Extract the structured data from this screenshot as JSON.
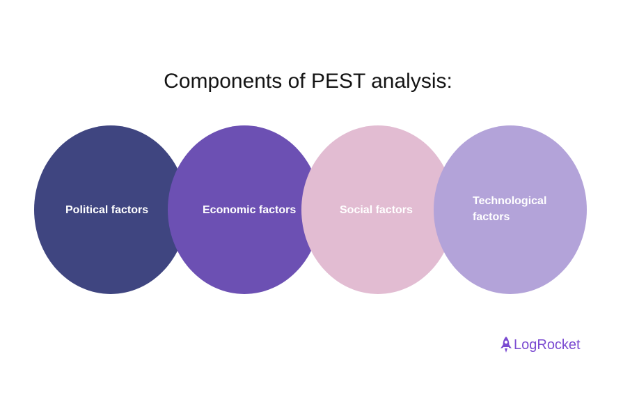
{
  "title": "Components of PEST analysis:",
  "components": [
    {
      "label": "Political factors",
      "color": "#3f4580"
    },
    {
      "label": "Economic factors",
      "color": "#6c50b3"
    },
    {
      "label": "Social factors",
      "color": "#e2bcd2"
    },
    {
      "label": "Technological factors",
      "color": "#b3a3d9"
    }
  ],
  "logo": {
    "text": "LogRocket",
    "icon": "rocket-icon",
    "color": "#7b4bd1"
  }
}
